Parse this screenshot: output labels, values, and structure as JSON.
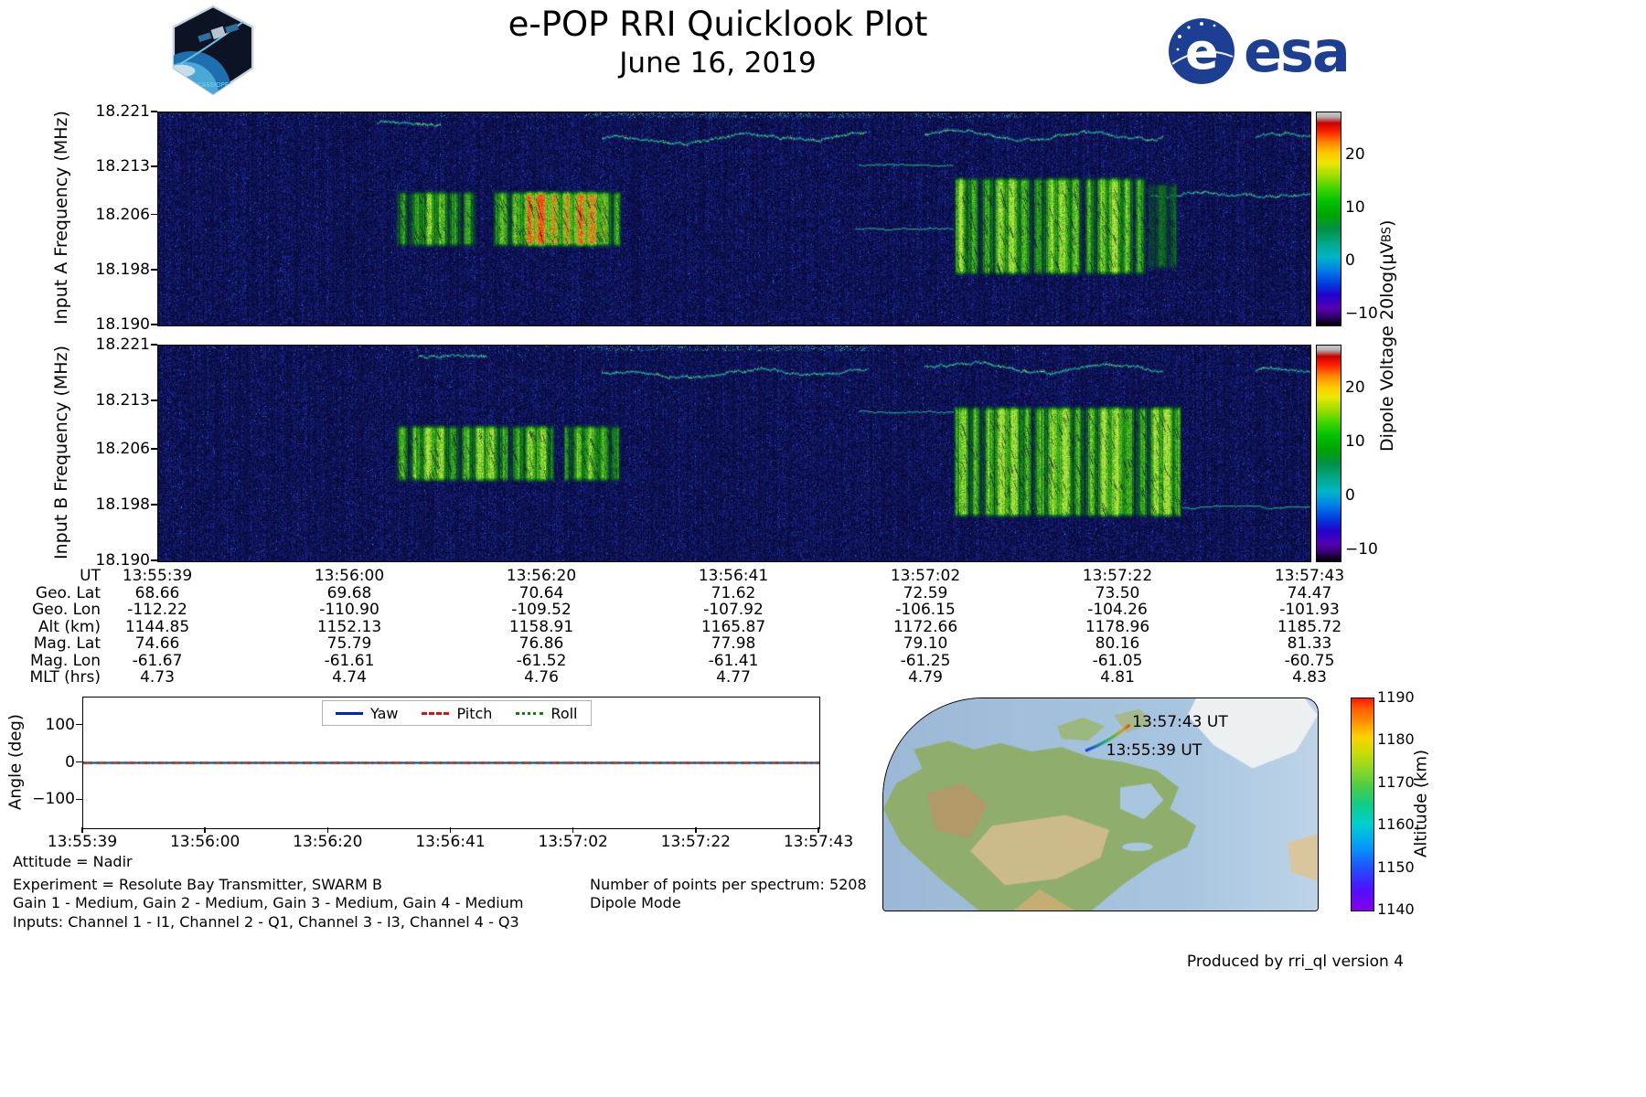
{
  "header": {
    "title": "e-POP RRI Quicklook Plot",
    "date": "June 16, 2019",
    "patch_text": "CASSIOPE",
    "esa_wordmark": "esa"
  },
  "colorbar_shared": {
    "label_main": "Dipole Voltage 20log(μV",
    "label_sub": "BS",
    "label_close": ")"
  },
  "footer": {
    "attitude": "Attitude = Nadir",
    "experiment": "Experiment = Resolute Bay Transmitter, SWARM B",
    "gains": "Gain 1 - Medium, Gain 2 - Medium, Gain 3 - Medium, Gain 4 - Medium",
    "inputs": "Inputs: Channel 1 - I1, Channel 2 - Q1, Channel 3 - I3, Channel 4 - Q3",
    "points": "Number of points per spectrum: 5208",
    "mode": "Dipole Mode",
    "produced": "Produced by rri_ql version 4"
  },
  "chart_data": [
    {
      "id": "input_a_spectrogram",
      "type": "heatmap",
      "ylabel": "Input A Frequency (MHz)",
      "ytick_labels": [
        "18.221",
        "18.213",
        "18.206",
        "18.198",
        "18.190"
      ],
      "ylim": [
        18.19,
        18.221
      ],
      "xrange_ut": [
        "13:55:39",
        "13:57:43"
      ],
      "colorbar": {
        "ticks": [
          "20",
          "10",
          "0",
          "−10"
        ],
        "tick_values": [
          20,
          10,
          0,
          -10
        ],
        "vmin": -12,
        "vmax": 28,
        "colormap": "nipy_spectral"
      },
      "features": [
        {
          "kind": "topband",
          "t0": 0.0,
          "t1": 1.0,
          "density": 0.08
        },
        {
          "kind": "topband",
          "t0": 0.37,
          "t1": 0.62,
          "density": 0.45
        },
        {
          "kind": "topband",
          "t0": 0.655,
          "t1": 0.75,
          "density": 0.3
        },
        {
          "kind": "squiggle",
          "t0": 0.19,
          "t1": 0.245,
          "f": 18.2193,
          "amp": 1.5,
          "ph": 0.5
        },
        {
          "kind": "squiggle",
          "t0": 0.385,
          "t1": 0.615,
          "f": 18.2172,
          "amp": 3.5,
          "ph": 1.2
        },
        {
          "kind": "squiggle",
          "t0": 0.665,
          "t1": 0.872,
          "f": 18.2178,
          "amp": 4.5,
          "ph": 3.1
        },
        {
          "kind": "squiggle",
          "t0": 0.952,
          "t1": 1.0,
          "f": 18.2172,
          "amp": 3.0,
          "ph": 0.2
        },
        {
          "kind": "squiggle",
          "t0": 0.862,
          "t1": 1.0,
          "f": 18.2088,
          "amp": 2.5,
          "ph": 4.0
        },
        {
          "kind": "hline",
          "t0": 0.608,
          "t1": 0.69,
          "f": 18.2133,
          "amp": 1.0
        },
        {
          "kind": "hline",
          "t0": 0.605,
          "t1": 0.69,
          "f": 18.204,
          "amp": 1.0
        },
        {
          "kind": "blob",
          "t0": 0.205,
          "t1": 0.276,
          "f0": 18.2013,
          "f1": 18.2098,
          "palette": "green",
          "bright": 1.0,
          "ph": 0.3
        },
        {
          "kind": "blob",
          "t0": 0.29,
          "t1": 0.402,
          "f0": 18.2013,
          "f1": 18.2098,
          "palette": "hot",
          "bright": 1.0,
          "ph": 1.7
        },
        {
          "kind": "blob",
          "t0": 0.69,
          "t1": 0.858,
          "f0": 18.1972,
          "f1": 18.2118,
          "palette": "green",
          "bright": 1.12,
          "ph": 2.4
        },
        {
          "kind": "blob",
          "t0": 0.858,
          "t1": 0.885,
          "f0": 18.198,
          "f1": 18.211,
          "palette": "green",
          "bright": 0.45,
          "ph": 4.2
        }
      ]
    },
    {
      "id": "input_b_spectrogram",
      "type": "heatmap",
      "ylabel": "Input B Frequency (MHz)",
      "ytick_labels": [
        "18.221",
        "18.213",
        "18.206",
        "18.198",
        "18.190"
      ],
      "ylim": [
        18.19,
        18.221
      ],
      "xrange_ut": [
        "13:55:39",
        "13:57:43"
      ],
      "colorbar": {
        "ticks": [
          "20",
          "10",
          "0",
          "−10"
        ],
        "tick_values": [
          20,
          10,
          0,
          -10
        ],
        "vmin": -12,
        "vmax": 28,
        "colormap": "nipy_spectral"
      },
      "features": [
        {
          "kind": "topband",
          "t0": 0.0,
          "t1": 1.0,
          "density": 0.08
        },
        {
          "kind": "topband",
          "t0": 0.37,
          "t1": 0.62,
          "density": 0.45
        },
        {
          "kind": "squiggle",
          "t0": 0.225,
          "t1": 0.285,
          "f": 18.2193,
          "amp": 1.5,
          "ph": 2.0
        },
        {
          "kind": "squiggle",
          "t0": 0.385,
          "t1": 0.615,
          "f": 18.217,
          "amp": 3.5,
          "ph": 0.6
        },
        {
          "kind": "squiggle",
          "t0": 0.665,
          "t1": 0.872,
          "f": 18.218,
          "amp": 4.5,
          "ph": 2.2
        },
        {
          "kind": "squiggle",
          "t0": 0.952,
          "t1": 1.0,
          "f": 18.2172,
          "amp": 3.0,
          "ph": 1.1
        },
        {
          "kind": "hline",
          "t0": 0.608,
          "t1": 0.69,
          "f": 18.2115,
          "amp": 1.0
        },
        {
          "kind": "hline",
          "t0": 0.888,
          "t1": 1.0,
          "f": 18.1978,
          "amp": 1.5
        },
        {
          "kind": "blob",
          "t0": 0.205,
          "t1": 0.344,
          "f0": 18.2013,
          "f1": 18.2098,
          "palette": "green",
          "bright": 1.15,
          "ph": 0.9
        },
        {
          "kind": "blob",
          "t0": 0.351,
          "t1": 0.402,
          "f0": 18.2013,
          "f1": 18.2098,
          "palette": "green",
          "bright": 1.0,
          "ph": 2.6
        },
        {
          "kind": "blob",
          "t0": 0.69,
          "t1": 0.888,
          "f0": 18.1962,
          "f1": 18.2125,
          "palette": "green",
          "bright": 1.2,
          "ph": 1.4
        }
      ]
    },
    {
      "id": "ephemeris",
      "type": "table",
      "rows": [
        {
          "label": "UT",
          "values": [
            "13:55:39",
            "13:56:00",
            "13:56:20",
            "13:56:41",
            "13:57:02",
            "13:57:22",
            "13:57:43"
          ]
        },
        {
          "label": "Geo. Lat",
          "values": [
            "68.66",
            "69.68",
            "70.64",
            "71.62",
            "72.59",
            "73.50",
            "74.47"
          ]
        },
        {
          "label": "Geo. Lon",
          "values": [
            "-112.22",
            "-110.90",
            "-109.52",
            "-107.92",
            "-106.15",
            "-104.26",
            "-101.93"
          ]
        },
        {
          "label": "Alt (km)",
          "values": [
            "1144.85",
            "1152.13",
            "1158.91",
            "1165.87",
            "1172.66",
            "1178.96",
            "1185.72"
          ]
        },
        {
          "label": "Mag. Lat",
          "values": [
            "74.66",
            "75.79",
            "76.86",
            "77.98",
            "79.10",
            "80.16",
            "81.33"
          ]
        },
        {
          "label": "Mag. Lon",
          "values": [
            "-61.67",
            "-61.61",
            "-61.52",
            "-61.41",
            "-61.25",
            "-61.05",
            "-60.75"
          ]
        },
        {
          "label": "MLT (hrs)",
          "values": [
            "4.73",
            "4.74",
            "4.76",
            "4.77",
            "4.79",
            "4.81",
            "4.83"
          ]
        }
      ]
    },
    {
      "id": "attitude_angles",
      "type": "line",
      "ylabel": "Angle (deg)",
      "ytick_labels": [
        "100",
        "0",
        "−100"
      ],
      "ytick_values": [
        100,
        0,
        -100
      ],
      "ylim": [
        -175,
        175
      ],
      "xticks": [
        "13:55:39",
        "13:56:00",
        "13:56:20",
        "13:56:41",
        "13:57:02",
        "13:57:22",
        "13:57:43"
      ],
      "series": [
        {
          "name": "Yaw",
          "color": "#0022cc",
          "style": "solid",
          "values": [
            0,
            0,
            0,
            0,
            0,
            0,
            0
          ]
        },
        {
          "name": "Pitch",
          "color": "#dd1111",
          "style": "dashed",
          "values": [
            0,
            0,
            0,
            0,
            0,
            0,
            0
          ]
        },
        {
          "name": "Roll",
          "color": "#0f7d0f",
          "style": "dotted",
          "values": [
            0,
            0,
            0,
            0,
            0,
            0,
            0
          ]
        }
      ]
    },
    {
      "id": "ground_track_map",
      "type": "map",
      "annotations": [
        {
          "text": "13:57:43 UT",
          "x": 0.575,
          "y": 0.075
        },
        {
          "text": "13:55:39 UT",
          "x": 0.515,
          "y": 0.205
        }
      ],
      "track": {
        "x0": 0.468,
        "y0": 0.245,
        "x1": 0.565,
        "y1": 0.128,
        "start_ut": "13:55:39",
        "end_ut": "13:57:43"
      },
      "colorbar": {
        "label": "Altitude (km)",
        "ticks": [
          "1190",
          "1180",
          "1170",
          "1160",
          "1150",
          "1140"
        ],
        "vmin": 1140,
        "vmax": 1190,
        "colormap": "rainbow"
      }
    }
  ]
}
